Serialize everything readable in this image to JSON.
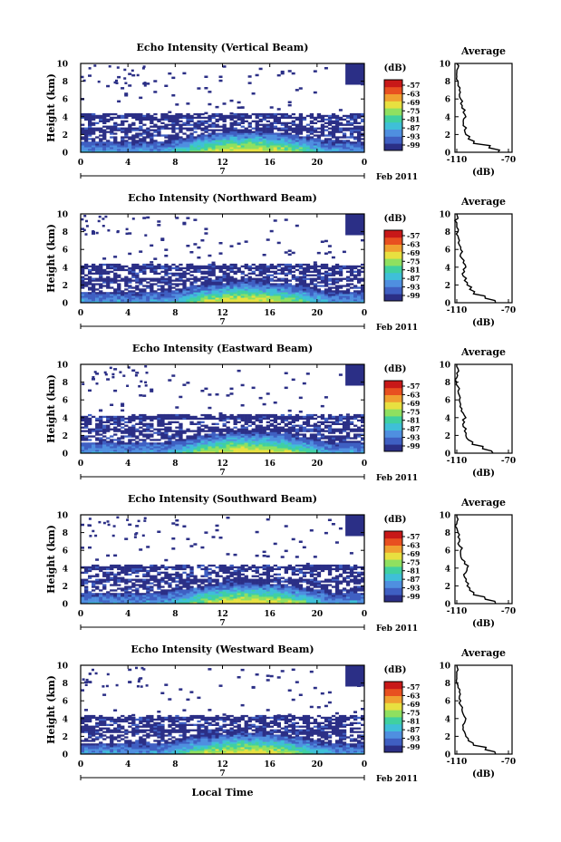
{
  "colors": {
    "scale": [
      "#2b2f86",
      "#3f5fc2",
      "#4f8fe0",
      "#3fbfd8",
      "#40d0a0",
      "#8fe060",
      "#e8e040",
      "#f0a030",
      "#e85020",
      "#c81818"
    ],
    "line": "#000000",
    "background": "#ffffff"
  },
  "common": {
    "y_tick_labels": [
      "0",
      "2",
      "4",
      "6",
      "8",
      "10"
    ],
    "x_tick_labels": [
      "0",
      "4",
      "8",
      "12",
      "16",
      "20",
      "0"
    ],
    "ylabel": "Height (km)",
    "date_day": "7",
    "date_suffix": "Feb 2011",
    "colorbar_unit": "(dB)",
    "colorbar_labels": [
      "-57",
      "-63",
      "-69",
      "-75",
      "-81",
      "-87",
      "-93",
      "-99"
    ],
    "avg_title": "Average",
    "avg_x_ticks": [
      "-110",
      "-70"
    ],
    "avg_xlabel": "(dB)",
    "avg_y_ticks": [
      "0",
      "2",
      "4",
      "6",
      "8",
      "10"
    ],
    "xlabel_bottom": "Local Time"
  },
  "chart_data": [
    {
      "type": "heatmap",
      "title": "Echo Intensity (Vertical Beam)",
      "beam": "vertical",
      "x_range_hours": [
        0,
        24
      ],
      "y_range_km": [
        0,
        10
      ],
      "color_range_db": [
        -99,
        -57
      ],
      "average_profile": {
        "xlim": [
          -110,
          -70
        ],
        "height_km": [
          0,
          0.5,
          1,
          1.5,
          2,
          2.5,
          3,
          3.5,
          4,
          4.5,
          5,
          5.5,
          6,
          6.5,
          7,
          7.5,
          8,
          8.5,
          9,
          9.5,
          10
        ],
        "db": [
          -78,
          -85,
          -97,
          -101,
          -103,
          -104,
          -105,
          -105,
          -103,
          -105,
          -106,
          -107,
          -107,
          -108,
          -108,
          -109,
          -109,
          -110,
          -110,
          -109,
          -110
        ]
      }
    },
    {
      "type": "heatmap",
      "title": "Echo Intensity (Northward Beam)",
      "beam": "northward",
      "x_range_hours": [
        0,
        24
      ],
      "y_range_km": [
        0,
        10
      ],
      "color_range_db": [
        -99,
        -57
      ],
      "average_profile": {
        "xlim": [
          -110,
          -70
        ],
        "height_km": [
          0,
          0.5,
          1,
          1.5,
          2,
          2.5,
          3,
          3.5,
          4,
          4.5,
          5,
          5.5,
          6,
          6.5,
          7,
          7.5,
          8,
          8.5,
          9,
          9.5,
          10
        ],
        "db": [
          -80,
          -88,
          -97,
          -100,
          -102,
          -104,
          -105,
          -104,
          -103,
          -105,
          -106,
          -107,
          -107,
          -108,
          -108,
          -109,
          -109,
          -110,
          -110,
          -109,
          -110
        ]
      }
    },
    {
      "type": "heatmap",
      "title": "Echo Intensity (Eastward Beam)",
      "beam": "eastward",
      "x_range_hours": [
        0,
        24
      ],
      "y_range_km": [
        0,
        10
      ],
      "color_range_db": [
        -99,
        -57
      ],
      "average_profile": {
        "xlim": [
          -110,
          -70
        ],
        "height_km": [
          0,
          0.5,
          1,
          1.5,
          2,
          2.5,
          3,
          3.5,
          4,
          4.5,
          5,
          5.5,
          6,
          6.5,
          7,
          7.5,
          8,
          8.5,
          9,
          9.5,
          10
        ],
        "db": [
          -82,
          -90,
          -98,
          -101,
          -103,
          -104,
          -105,
          -104,
          -103,
          -105,
          -106,
          -107,
          -108,
          -108,
          -109,
          -109,
          -110,
          -110,
          -110,
          -109,
          -110
        ]
      }
    },
    {
      "type": "heatmap",
      "title": "Echo Intensity (Southward Beam)",
      "beam": "southward",
      "x_range_hours": [
        0,
        24
      ],
      "y_range_km": [
        0,
        10
      ],
      "color_range_db": [
        -99,
        -57
      ],
      "average_profile": {
        "xlim": [
          -110,
          -70
        ],
        "height_km": [
          0,
          0.5,
          1,
          1.5,
          2,
          2.5,
          3,
          3.5,
          4,
          4.5,
          5,
          5.5,
          6,
          6.5,
          7,
          7.5,
          8,
          8.5,
          9,
          9.5,
          10
        ],
        "db": [
          -80,
          -88,
          -97,
          -100,
          -102,
          -103,
          -104,
          -103,
          -102,
          -104,
          -106,
          -107,
          -107,
          -108,
          -108,
          -109,
          -109,
          -110,
          -110,
          -109,
          -110
        ]
      }
    },
    {
      "type": "heatmap",
      "title": "Echo Intensity (Westward Beam)",
      "beam": "westward",
      "x_range_hours": [
        0,
        24
      ],
      "y_range_km": [
        0,
        10
      ],
      "color_range_db": [
        -99,
        -57
      ],
      "average_profile": {
        "xlim": [
          -110,
          -70
        ],
        "height_km": [
          0,
          0.5,
          1,
          1.5,
          2,
          2.5,
          3,
          3.5,
          4,
          4.5,
          5,
          5.5,
          6,
          6.5,
          7,
          7.5,
          8,
          8.5,
          9,
          9.5,
          10
        ],
        "db": [
          -80,
          -88,
          -97,
          -101,
          -103,
          -104,
          -105,
          -104,
          -103,
          -105,
          -106,
          -107,
          -107,
          -108,
          -108,
          -109,
          -110,
          -110,
          -110,
          -109,
          -110
        ]
      }
    }
  ]
}
